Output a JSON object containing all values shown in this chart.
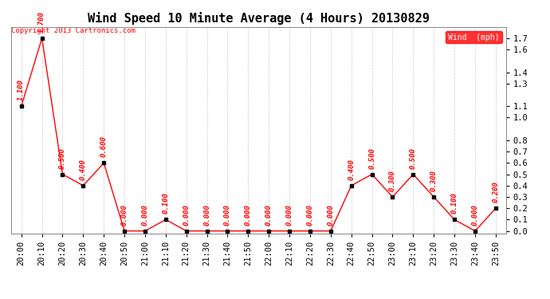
{
  "title": "Wind Speed 10 Minute Average (4 Hours) 20130829",
  "copyright_text": "Copyright 2013 Cartronics.com",
  "legend_label": "Wind  (mph)",
  "x_labels": [
    "20:00",
    "20:10",
    "20:20",
    "20:30",
    "20:40",
    "20:50",
    "21:00",
    "21:10",
    "21:20",
    "21:30",
    "21:40",
    "21:50",
    "22:00",
    "22:10",
    "22:20",
    "22:30",
    "22:40",
    "22:50",
    "23:00",
    "23:10",
    "23:20",
    "23:30",
    "23:40",
    "23:50"
  ],
  "y_values": [
    1.1,
    1.7,
    0.5,
    0.4,
    0.6,
    0.0,
    0.0,
    0.1,
    0.0,
    0.0,
    0.0,
    0.0,
    0.0,
    0.0,
    0.0,
    0.0,
    0.4,
    0.5,
    0.3,
    0.5,
    0.3,
    0.1,
    0.0,
    0.2
  ],
  "line_color": "#ff0000",
  "marker_color": "#000000",
  "label_color": "#ff0000",
  "background_color": "#ffffff",
  "grid_color": "#cccccc",
  "ylim": [
    -0.02,
    1.8
  ],
  "yticks": [
    0.0,
    0.1,
    0.2,
    0.3,
    0.4,
    0.5,
    0.6,
    0.7,
    0.8,
    1.0,
    1.1,
    1.3,
    1.4,
    1.6,
    1.7
  ],
  "title_fontsize": 11,
  "label_fontsize": 6.5,
  "tick_fontsize": 7.5,
  "legend_box_color": "#ff0000",
  "legend_text_color": "#ffffff",
  "copyright_fontsize": 6.5
}
